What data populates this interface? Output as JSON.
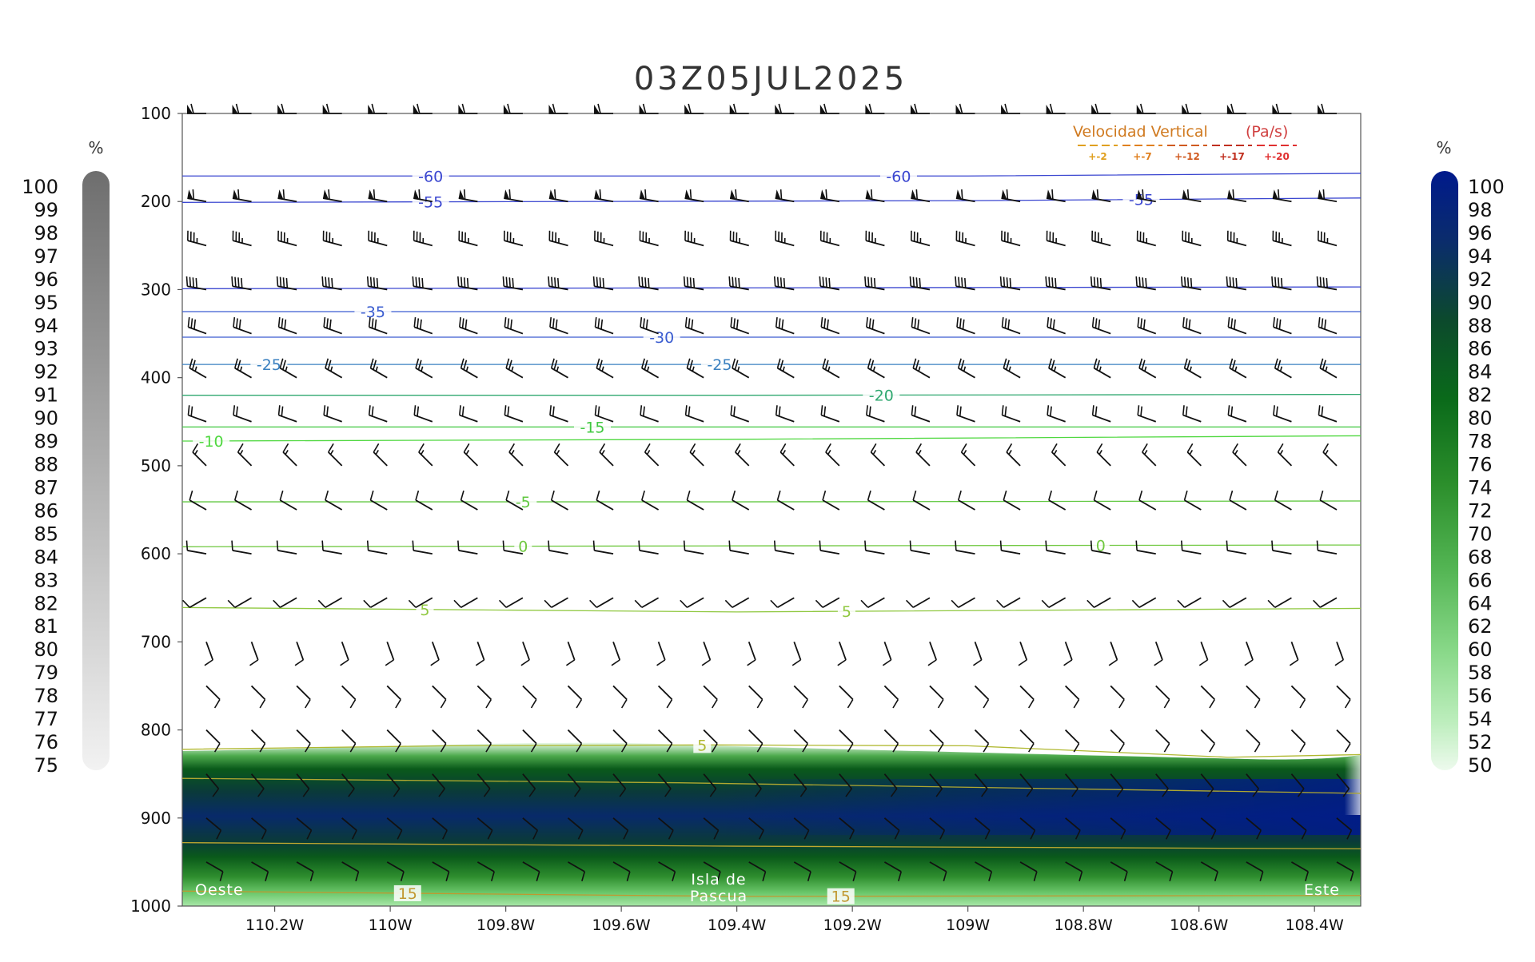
{
  "chart_data": {
    "type": "cross-section",
    "title": "03Z05JUL2025",
    "y_axis": {
      "ticks": [
        100,
        200,
        300,
        400,
        500,
        600,
        700,
        800,
        900,
        1000
      ],
      "range": [
        100,
        1000
      ],
      "direction": "pressure, increasing downward"
    },
    "x_axis": {
      "ticks": [
        "110.2W",
        "110W",
        "109.8W",
        "109.6W",
        "109.4W",
        "109.2W",
        "109W",
        "108.8W",
        "108.6W",
        "108.4W"
      ],
      "tick_values": [
        -110.2,
        -110.0,
        -109.8,
        -109.6,
        -109.4,
        -109.2,
        -109.0,
        -108.8,
        -108.6,
        -108.4
      ],
      "range": [
        -110.36,
        -108.32
      ]
    },
    "location_labels": {
      "west": "Oeste",
      "center_line1": "Isla de",
      "center_line2": "Pascua",
      "east": "Este"
    },
    "legend": {
      "title": "Velocidad Vertical",
      "units": "(Pa/s)",
      "entries": [
        {
          "label": "+-2",
          "color": "#e0a020"
        },
        {
          "label": "+-7",
          "color": "#e08020"
        },
        {
          "label": "+-12",
          "color": "#d05a20"
        },
        {
          "label": "+-17",
          "color": "#c03020"
        },
        {
          "label": "+-20",
          "color": "#e03030"
        }
      ]
    },
    "left_colorbar": {
      "unit": "%",
      "labels": [
        "100",
        "99",
        "98",
        "97",
        "96",
        "95",
        "94",
        "93",
        "92",
        "91",
        "90",
        "89",
        "88",
        "87",
        "86",
        "85",
        "84",
        "83",
        "82",
        "81",
        "80",
        "79",
        "78",
        "77",
        "76",
        "75"
      ],
      "range": [
        75,
        100
      ],
      "colors": [
        "#707070",
        "#f2f2f2"
      ]
    },
    "right_colorbar": {
      "unit": "%",
      "labels": [
        "100",
        "98",
        "96",
        "94",
        "92",
        "90",
        "88",
        "86",
        "84",
        "82",
        "80",
        "78",
        "76",
        "74",
        "72",
        "70",
        "68",
        "66",
        "64",
        "62",
        "60",
        "58",
        "56",
        "54",
        "52",
        "50"
      ],
      "range": [
        50,
        100
      ],
      "colors": [
        "#001a8c",
        "#0b2d6b",
        "#0c4a2c",
        "#0a6a1a",
        "#2b8e2b",
        "#52b452",
        "#88d888",
        "#bdeebd",
        "#edfaed"
      ]
    },
    "temperature_contours": [
      {
        "label": "-60",
        "color": "#3a46d0",
        "points": [
          [
            -110.36,
            171
          ],
          [
            -109.7,
            171
          ],
          [
            -109.0,
            171
          ],
          [
            -108.32,
            168
          ]
        ],
        "label_at": [
          -109.93,
          -109.12
        ]
      },
      {
        "label": "-55",
        "color": "#3a46d0",
        "points": [
          [
            -110.36,
            201
          ],
          [
            -109.7,
            200
          ],
          [
            -109.0,
            199
          ],
          [
            -108.32,
            196
          ]
        ],
        "label_at": [
          -109.93,
          -108.7
        ]
      },
      {
        "label": "",
        "color": "#3a46d0",
        "points": [
          [
            -110.36,
            299
          ],
          [
            -109.4,
            298
          ],
          [
            -108.32,
            297
          ]
        ],
        "label_at": []
      },
      {
        "label": "-35",
        "color": "#3a5cd0",
        "points": [
          [
            -110.36,
            325
          ],
          [
            -109.4,
            325
          ],
          [
            -108.32,
            325
          ]
        ],
        "label_at": [
          -110.03
        ]
      },
      {
        "label": "-30",
        "color": "#3a5cd0",
        "points": [
          [
            -110.36,
            354
          ],
          [
            -109.4,
            354
          ],
          [
            -108.32,
            354
          ]
        ],
        "label_at": [
          -109.53
        ]
      },
      {
        "label": "-25",
        "color": "#3a80c0",
        "points": [
          [
            -110.36,
            385
          ],
          [
            -109.4,
            385
          ],
          [
            -108.32,
            385
          ]
        ],
        "label_at": [
          -110.21,
          -109.43
        ]
      },
      {
        "label": "-20",
        "color": "#30a870",
        "points": [
          [
            -110.36,
            420
          ],
          [
            -109.4,
            420
          ],
          [
            -108.32,
            419
          ]
        ],
        "label_at": [
          -109.15
        ]
      },
      {
        "label": "-15",
        "color": "#40c840",
        "points": [
          [
            -110.36,
            456
          ],
          [
            -109.4,
            456
          ],
          [
            -108.32,
            456
          ]
        ],
        "label_at": [
          -109.65
        ]
      },
      {
        "label": "-10",
        "color": "#50d840",
        "points": [
          [
            -110.36,
            472
          ],
          [
            -109.4,
            470
          ],
          [
            -108.32,
            466
          ]
        ],
        "label_at": [
          -110.31
        ]
      },
      {
        "label": "-5",
        "color": "#60c840",
        "points": [
          [
            -110.36,
            541
          ],
          [
            -109.4,
            541
          ],
          [
            -108.32,
            540
          ]
        ],
        "label_at": [
          -109.77
        ]
      },
      {
        "label": "0",
        "color": "#70c840",
        "points": [
          [
            -110.36,
            592
          ],
          [
            -109.4,
            591
          ],
          [
            -108.32,
            590
          ]
        ],
        "label_at": [
          -109.77,
          -108.77
        ]
      },
      {
        "label": "5",
        "color": "#90c840",
        "points": [
          [
            -110.36,
            661
          ],
          [
            -109.4,
            666
          ],
          [
            -108.32,
            662
          ]
        ],
        "label_at": [
          -109.94,
          -109.21
        ]
      },
      {
        "label": "5",
        "color": "#b0b830",
        "points": [
          [
            -110.36,
            822
          ],
          [
            -109.9,
            818
          ],
          [
            -109.45,
            817
          ],
          [
            -109.0,
            818
          ],
          [
            -108.55,
            831
          ],
          [
            -108.32,
            828
          ]
        ],
        "label_at": [
          -109.46
        ]
      },
      {
        "label": "",
        "color": "#b0a830",
        "points": [
          [
            -110.36,
            855
          ],
          [
            -109.5,
            860
          ],
          [
            -108.32,
            872
          ]
        ],
        "label_at": []
      },
      {
        "label": "",
        "color": "#c0a830",
        "points": [
          [
            -110.36,
            928
          ],
          [
            -109.4,
            932
          ],
          [
            -108.32,
            935
          ]
        ],
        "label_at": []
      },
      {
        "label": "15",
        "color": "#c09830",
        "points": [
          [
            -110.36,
            983
          ],
          [
            -109.4,
            989
          ],
          [
            -108.32,
            988
          ]
        ],
        "label_at": [
          -109.97,
          -109.22
        ]
      }
    ],
    "wind_barbs": {
      "columns": 26,
      "rows": [
        {
          "p": 100,
          "dir": 270,
          "speed": 60
        },
        {
          "p": 200,
          "dir": 280,
          "speed": 60
        },
        {
          "p": 250,
          "dir": 285,
          "speed": 35
        },
        {
          "p": 300,
          "dir": 280,
          "speed": 40
        },
        {
          "p": 350,
          "dir": 290,
          "speed": 30
        },
        {
          "p": 400,
          "dir": 300,
          "speed": 25
        },
        {
          "p": 450,
          "dir": 290,
          "speed": 20
        },
        {
          "p": 500,
          "dir": 315,
          "speed": 15
        },
        {
          "p": 550,
          "dir": 300,
          "speed": 10
        },
        {
          "p": 600,
          "dir": 280,
          "speed": 8
        },
        {
          "p": 650,
          "dir": 240,
          "speed": 8
        },
        {
          "p": 700,
          "dir": 160,
          "speed": 10
        },
        {
          "p": 750,
          "dir": 135,
          "speed": 10
        },
        {
          "p": 800,
          "dir": 135,
          "speed": 10
        },
        {
          "p": 850,
          "dir": 140,
          "speed": 10
        },
        {
          "p": 900,
          "dir": 130,
          "speed": 10
        },
        {
          "p": 950,
          "dir": 120,
          "speed": 10
        }
      ]
    }
  }
}
